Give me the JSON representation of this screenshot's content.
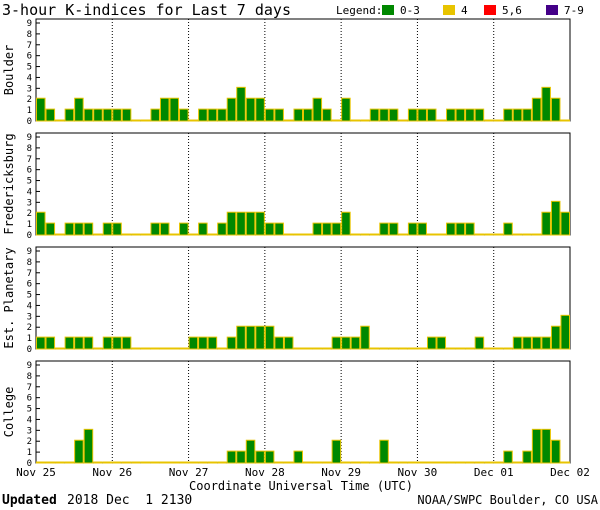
{
  "header": {
    "title": "3-hour K-indices for Last 7 days",
    "legend_label": "Legend:",
    "legend": [
      {
        "label": "0-3",
        "color": "#008800"
      },
      {
        "label": "4",
        "color": "#e8c400"
      },
      {
        "label": "5,6",
        "color": "#ff0000"
      },
      {
        "label": "7-9",
        "color": "#440088"
      }
    ]
  },
  "footer": {
    "updated_label": "Updated",
    "updated_value": "2018 Dec  1 2130",
    "credit": "NOAA/SWPC Boulder, CO USA"
  },
  "chart_data": {
    "type": "bar",
    "xlabel": "Coordinate Universal Time (UTC)",
    "x_tick_labels": [
      "Nov 25",
      "Nov 26",
      "Nov 27",
      "Nov 28",
      "Nov 29",
      "Nov 30",
      "Dec 01",
      "Dec 02"
    ],
    "ylim": [
      0,
      9
    ],
    "y_ticks": [
      0,
      1,
      2,
      3,
      4,
      5,
      6,
      7,
      8,
      9
    ],
    "bar_edge_color": "#e8c400",
    "color_rule": {
      "0-3": "#008800",
      "4": "#e8c400",
      "5-6": "#ff0000",
      "7-9": "#440088"
    },
    "intervals_per_day": 8,
    "panels": [
      {
        "name": "Boulder",
        "values": [
          2,
          1,
          0,
          1,
          2,
          1,
          1,
          1,
          1,
          1,
          0,
          0,
          1,
          2,
          2,
          1,
          0,
          1,
          1,
          1,
          2,
          3,
          2,
          2,
          1,
          1,
          0,
          1,
          1,
          2,
          1,
          0,
          2,
          0,
          0,
          1,
          1,
          1,
          0,
          1,
          1,
          1,
          0,
          1,
          1,
          1,
          1,
          0,
          0,
          1,
          1,
          1,
          2,
          3,
          2,
          0
        ]
      },
      {
        "name": "Fredericksburg",
        "values": [
          2,
          1,
          0,
          1,
          1,
          1,
          0,
          1,
          1,
          0,
          0,
          0,
          1,
          1,
          0,
          1,
          0,
          1,
          0,
          1,
          2,
          2,
          2,
          2,
          1,
          1,
          0,
          0,
          0,
          1,
          1,
          1,
          2,
          0,
          0,
          0,
          1,
          1,
          0,
          1,
          1,
          0,
          0,
          1,
          1,
          1,
          0,
          0,
          0,
          1,
          0,
          0,
          0,
          2,
          3,
          2
        ]
      },
      {
        "name": "Est. Planetary",
        "values": [
          1,
          1,
          0,
          1,
          1,
          1,
          0,
          1,
          1,
          1,
          0,
          0,
          0,
          0,
          0,
          0,
          1,
          1,
          1,
          0,
          1,
          2,
          2,
          2,
          2,
          1,
          1,
          0,
          0,
          0,
          0,
          1,
          1,
          1,
          2,
          0,
          0,
          0,
          0,
          0,
          0,
          1,
          1,
          0,
          0,
          0,
          1,
          0,
          0,
          0,
          1,
          1,
          1,
          1,
          2,
          3,
          3
        ]
      },
      {
        "name": "College",
        "values": [
          0,
          0,
          0,
          0,
          2,
          3,
          0,
          0,
          0,
          0,
          0,
          0,
          0,
          0,
          0,
          0,
          0,
          0,
          0,
          0,
          1,
          1,
          2,
          1,
          1,
          0,
          0,
          1,
          0,
          0,
          0,
          2,
          0,
          0,
          0,
          0,
          2,
          0,
          0,
          0,
          0,
          0,
          0,
          0,
          0,
          0,
          0,
          0,
          0,
          1,
          0,
          1,
          3,
          3,
          2,
          0
        ]
      }
    ]
  }
}
